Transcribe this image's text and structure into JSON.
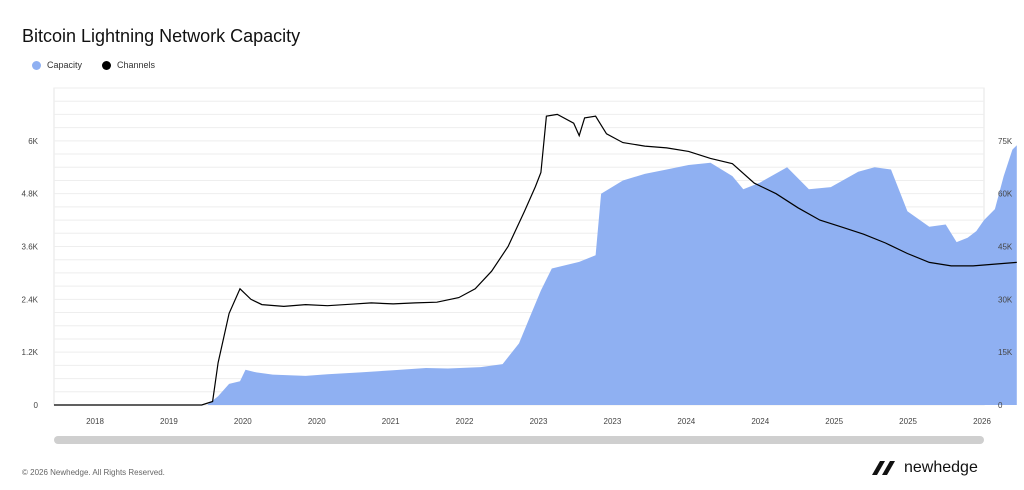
{
  "title": "Bitcoin Lightning Network Capacity",
  "legend": [
    {
      "label": "Capacity",
      "color": "#8fb0f2"
    },
    {
      "label": "Channels",
      "color": "#000000"
    }
  ],
  "footer": "© 2026 Newhedge. All Rights Reserved.",
  "brand": {
    "name": "newhedge",
    "icon": "newhedge-logo-icon"
  },
  "chart_data": {
    "type": "area",
    "title": "Bitcoin Lightning Network Capacity",
    "grid": true,
    "legend_position": "top-left",
    "x_tick_labels": [
      "2018",
      "2019",
      "2020",
      "2020",
      "2021",
      "2022",
      "2023",
      "2023",
      "2024",
      "2024",
      "2025",
      "2025",
      "2026"
    ],
    "left_axis": {
      "ticks": [
        "0",
        "1.2K",
        "2.4K",
        "3.6K",
        "4.8K",
        "6K"
      ],
      "ylim": [
        0,
        7200
      ],
      "series": "Capacity"
    },
    "right_axis": {
      "ticks": [
        "0",
        "15K",
        "30K",
        "45K",
        "60K",
        "75K"
      ],
      "ylim": [
        0,
        90000
      ],
      "series": "Channels"
    },
    "x_range": [
      2017.5,
      2026.0
    ],
    "series": [
      {
        "name": "Capacity",
        "axis": "left",
        "color": "#8fb0f2",
        "points": [
          [
            2017.5,
            0
          ],
          [
            2018.9,
            0
          ],
          [
            2019.0,
            200
          ],
          [
            2019.1,
            480
          ],
          [
            2019.2,
            540
          ],
          [
            2019.25,
            800
          ],
          [
            2019.35,
            740
          ],
          [
            2019.5,
            690
          ],
          [
            2019.8,
            660
          ],
          [
            2020.0,
            700
          ],
          [
            2020.3,
            740
          ],
          [
            2020.6,
            790
          ],
          [
            2020.9,
            840
          ],
          [
            2021.1,
            830
          ],
          [
            2021.4,
            860
          ],
          [
            2021.6,
            930
          ],
          [
            2021.75,
            1400
          ],
          [
            2021.85,
            2000
          ],
          [
            2021.95,
            2600
          ],
          [
            2022.05,
            3100
          ],
          [
            2022.3,
            3250
          ],
          [
            2022.45,
            3400
          ],
          [
            2022.5,
            4800
          ],
          [
            2022.7,
            5100
          ],
          [
            2022.9,
            5250
          ],
          [
            2023.1,
            5350
          ],
          [
            2023.3,
            5450
          ],
          [
            2023.5,
            5500
          ],
          [
            2023.7,
            5200
          ],
          [
            2023.8,
            4900
          ],
          [
            2023.95,
            5050
          ],
          [
            2024.2,
            5400
          ],
          [
            2024.4,
            4900
          ],
          [
            2024.6,
            4950
          ],
          [
            2024.85,
            5300
          ],
          [
            2025.0,
            5400
          ],
          [
            2025.15,
            5350
          ],
          [
            2025.3,
            4400
          ],
          [
            2025.5,
            4050
          ],
          [
            2025.65,
            4100
          ],
          [
            2025.75,
            3700
          ],
          [
            2025.85,
            3800
          ],
          [
            2025.93,
            3950
          ],
          [
            2026.0,
            4200
          ],
          [
            2026.1,
            4450
          ],
          [
            2026.18,
            5200
          ],
          [
            2026.26,
            5800
          ],
          [
            2026.3,
            5900
          ],
          [
            2026.3,
            0
          ]
        ]
      },
      {
        "name": "Channels",
        "axis": "right",
        "color": "#000000",
        "points": [
          [
            2017.5,
            0
          ],
          [
            2018.85,
            0
          ],
          [
            2018.95,
            1000
          ],
          [
            2019.0,
            12000
          ],
          [
            2019.05,
            19000
          ],
          [
            2019.1,
            26000
          ],
          [
            2019.2,
            33000
          ],
          [
            2019.3,
            30000
          ],
          [
            2019.4,
            28500
          ],
          [
            2019.6,
            28000
          ],
          [
            2019.8,
            28500
          ],
          [
            2020.0,
            28200
          ],
          [
            2020.2,
            28600
          ],
          [
            2020.4,
            29000
          ],
          [
            2020.6,
            28700
          ],
          [
            2020.8,
            29000
          ],
          [
            2021.0,
            29200
          ],
          [
            2021.2,
            30500
          ],
          [
            2021.35,
            33000
          ],
          [
            2021.5,
            38000
          ],
          [
            2021.65,
            45000
          ],
          [
            2021.8,
            55000
          ],
          [
            2021.9,
            62000
          ],
          [
            2021.95,
            66000
          ],
          [
            2022.0,
            82000
          ],
          [
            2022.1,
            82500
          ],
          [
            2022.25,
            80000
          ],
          [
            2022.3,
            76500
          ],
          [
            2022.35,
            81500
          ],
          [
            2022.45,
            82000
          ],
          [
            2022.55,
            77000
          ],
          [
            2022.7,
            74500
          ],
          [
            2022.9,
            73500
          ],
          [
            2023.1,
            73000
          ],
          [
            2023.3,
            72000
          ],
          [
            2023.5,
            70000
          ],
          [
            2023.7,
            68500
          ],
          [
            2023.9,
            63000
          ],
          [
            2024.1,
            60000
          ],
          [
            2024.3,
            56000
          ],
          [
            2024.5,
            52500
          ],
          [
            2024.7,
            50500
          ],
          [
            2024.9,
            48500
          ],
          [
            2025.1,
            46000
          ],
          [
            2025.3,
            43000
          ],
          [
            2025.5,
            40500
          ],
          [
            2025.7,
            39500
          ],
          [
            2025.9,
            39500
          ],
          [
            2026.1,
            40000
          ],
          [
            2026.3,
            40500
          ]
        ]
      }
    ]
  }
}
